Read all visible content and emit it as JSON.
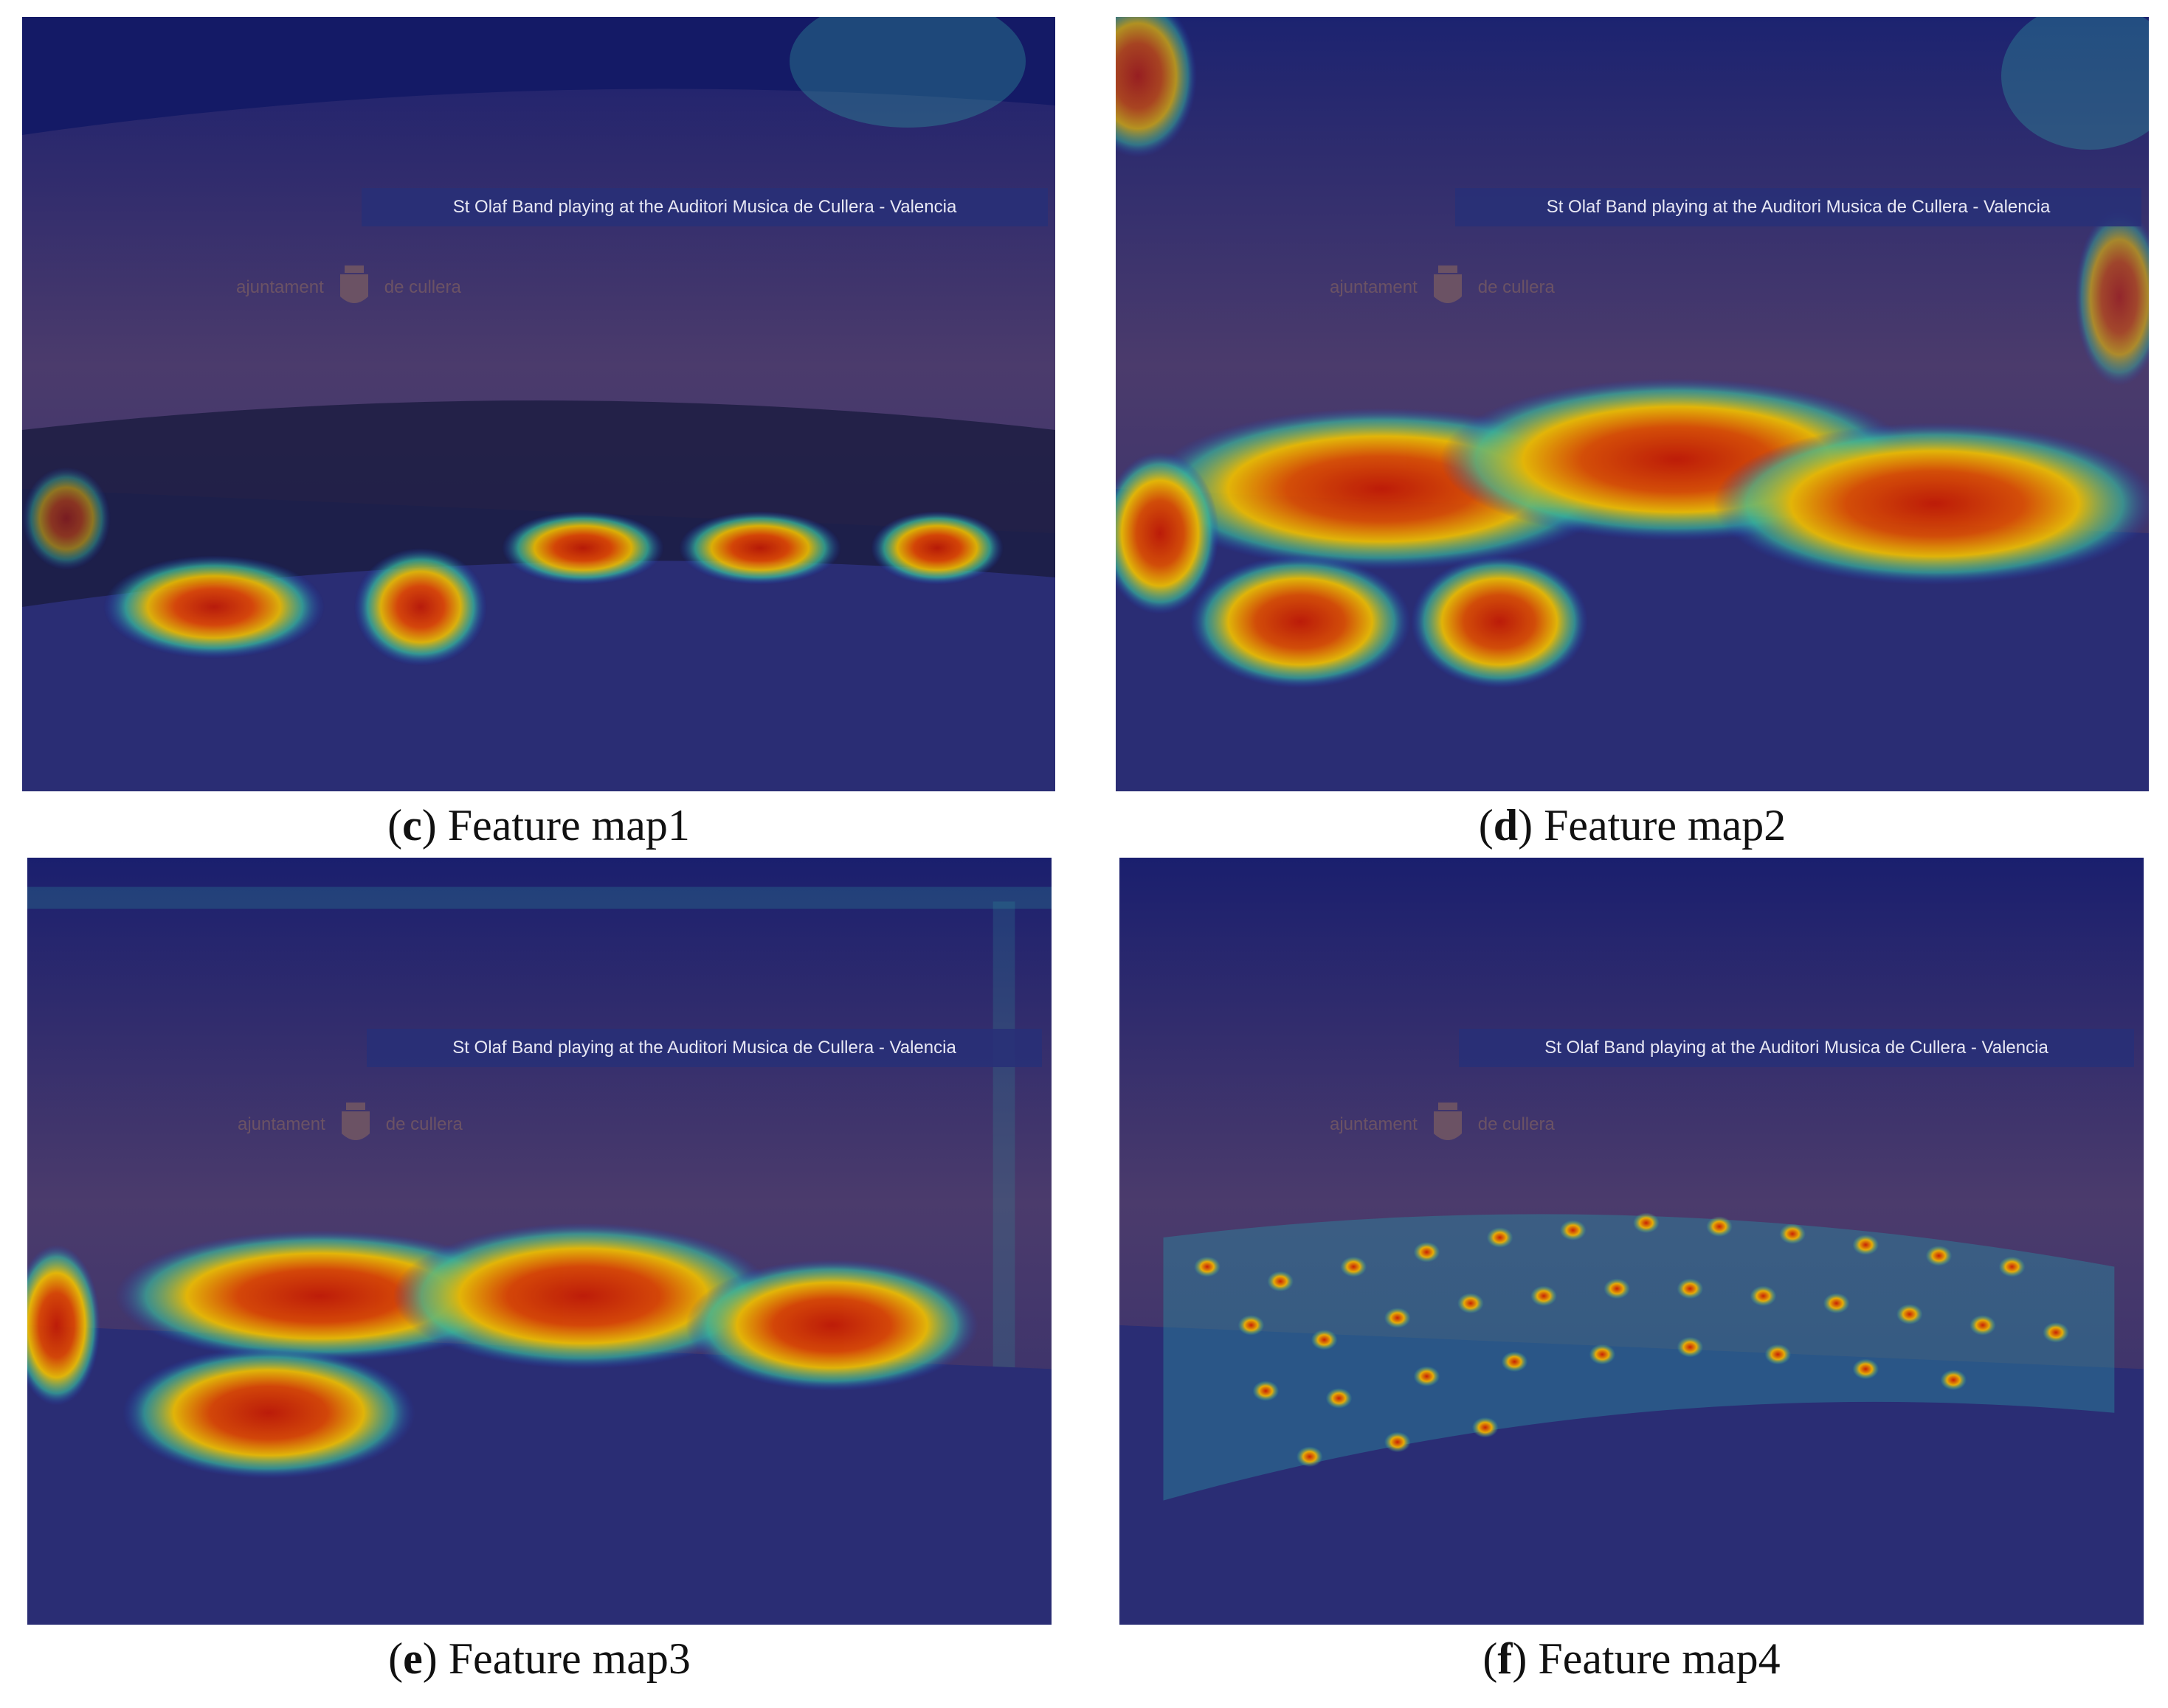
{
  "panels": [
    {
      "id": "c",
      "letter": "c",
      "caption": "Feature map1",
      "heat": "low"
    },
    {
      "id": "d",
      "letter": "d",
      "caption": "Feature map2",
      "heat": "broad"
    },
    {
      "id": "e",
      "letter": "e",
      "caption": "Feature map3",
      "heat": "mid"
    },
    {
      "id": "f",
      "letter": "f",
      "caption": "Feature map4",
      "heat": "heads"
    }
  ],
  "scene": {
    "banner_text": "St Olaf Band playing at the Auditori Musica de Cullera - Valencia",
    "logo_left": "ajuntament",
    "logo_right": "de cullera"
  },
  "colors": {
    "base": "#0c0d55",
    "wall": "#4a3a6a",
    "stage": "#3a3a78",
    "heat_hot": "#c81a00",
    "heat_warm": "#f0a000",
    "heat_cool": "#38c0a0"
  }
}
